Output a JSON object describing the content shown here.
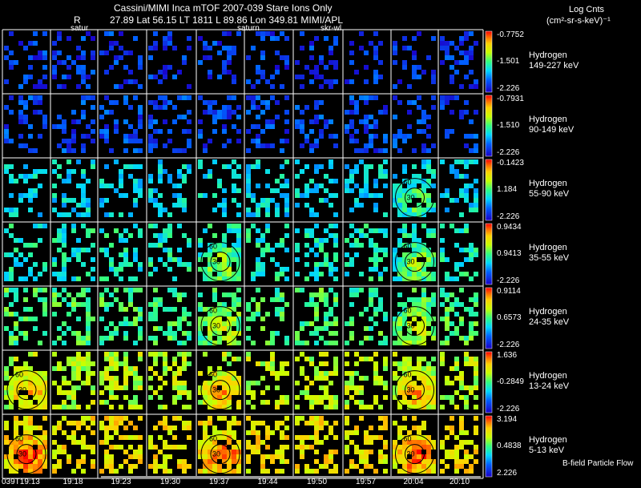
{
  "header": {
    "title": "Cassini/MIMI Inca mTOF  2007-039   Stare   Ions Only",
    "r_label": "R",
    "geo_line": "27.89 Lat 56.15 LT 1811 L        89.86 Lon        349.81  MIMI/APL",
    "units_line1": "Log Cnts",
    "units_line2": "(cm²-sr-s-keV)⁻¹",
    "frame_labels": [
      "satur",
      "saturn",
      "skr-wl"
    ]
  },
  "footer": {
    "flow_label": "B-field Particle Flow"
  },
  "chart_data": {
    "type": "heatmap",
    "title": "Cassini/MIMI Inca mTOF 2007-039 Stare Ions Only",
    "colorbar_label": "Log Cnts (cm²-sr-s-keV)⁻¹",
    "x_tick_labels": [
      "039T19:13",
      "19:18",
      "19:23",
      "19:30",
      "19:37",
      "19:44",
      "19:50",
      "19:57",
      "20:04",
      "20:10"
    ],
    "frames_per_row": 10,
    "rows": [
      {
        "species": "Hydrogen",
        "energy": "149-227 keV",
        "cb_max": "-0.7752",
        "cb_mid": "-1.501",
        "cb_min": "-2.226",
        "level": 0.12,
        "density": 0.28,
        "hotspots": []
      },
      {
        "species": "Hydrogen",
        "energy": "90-149 keV",
        "cb_max": "-0.7931",
        "cb_mid": "-1.510",
        "cb_min": "-2.226",
        "level": 0.14,
        "density": 0.34,
        "hotspots": []
      },
      {
        "species": "Hydrogen",
        "energy": "55-90 keV",
        "cb_max": "-0.1423",
        "cb_mid": "1.184",
        "cb_min": "-2.226",
        "level": 0.36,
        "density": 0.36,
        "hotspots": [
          8
        ]
      },
      {
        "species": "Hydrogen",
        "energy": "35-55 keV",
        "cb_max": "0.9434",
        "cb_mid": "0.9413",
        "cb_min": "-2.226",
        "level": 0.42,
        "density": 0.38,
        "hotspots": [
          4,
          8
        ]
      },
      {
        "species": "Hydrogen",
        "energy": "24-35 keV",
        "cb_max": "0.9114",
        "cb_mid": "0.6573",
        "cb_min": "-2.226",
        "level": 0.5,
        "density": 0.4,
        "hotspots": [
          4,
          8
        ]
      },
      {
        "species": "Hydrogen",
        "energy": "13-24 keV",
        "cb_max": "1.636",
        "cb_mid": "-0.2849",
        "cb_min": "-2.226",
        "level": 0.64,
        "density": 0.44,
        "hotspots": [
          0,
          4,
          8
        ]
      },
      {
        "species": "Hydrogen",
        "energy": "5-13 keV",
        "cb_max": "3.194",
        "cb_mid": "0.4838",
        "cb_min": "2.226",
        "level": 0.74,
        "density": 0.46,
        "hotspots": [
          0,
          4,
          8
        ]
      }
    ],
    "contour_labels": [
      "60",
      "30"
    ]
  }
}
